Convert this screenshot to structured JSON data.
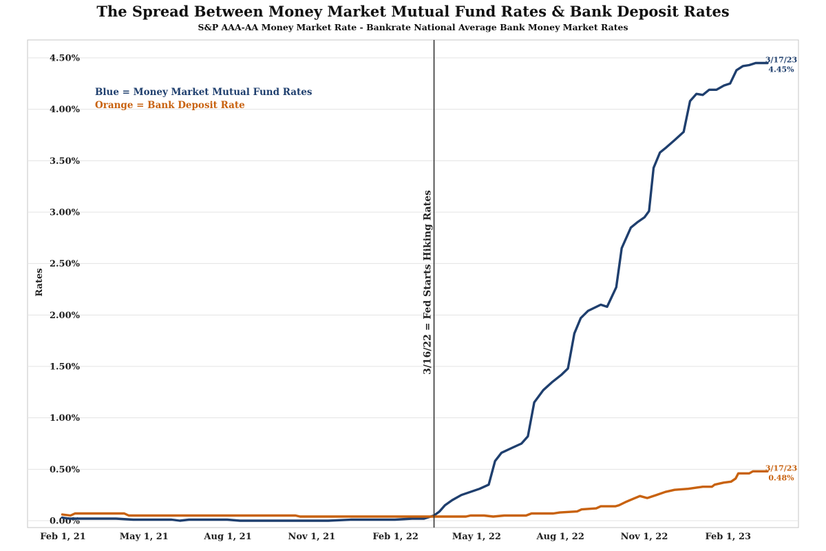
{
  "chart_data": {
    "type": "line",
    "title": "The Spread Between Money Market Mutual Fund Rates & Bank Deposit Rates",
    "subtitle": "S&P AAA-AA Money Market Rate - Bankrate National Average Bank Money Market Rates",
    "ylabel": "Rates",
    "xlabel": "",
    "x_range": [
      "2021-01-15",
      "2023-04-20"
    ],
    "ylim": [
      0,
      4.5
    ],
    "y_ticks": [
      "0.00%",
      "0.50%",
      "1.00%",
      "1.50%",
      "2.00%",
      "2.50%",
      "3.00%",
      "3.50%",
      "4.00%",
      "4.50%"
    ],
    "x_ticks": [
      {
        "date": "2021-02-01",
        "label": "Feb 1, 21"
      },
      {
        "date": "2021-05-01",
        "label": "May 1, 21"
      },
      {
        "date": "2021-08-01",
        "label": "Aug 1, 21"
      },
      {
        "date": "2021-11-01",
        "label": "Nov 1, 21"
      },
      {
        "date": "2022-02-01",
        "label": "Feb 1, 22"
      },
      {
        "date": "2022-05-01",
        "label": "May 1, 22"
      },
      {
        "date": "2022-08-01",
        "label": "Aug 1, 22"
      },
      {
        "date": "2022-11-01",
        "label": "Nov 1, 22"
      },
      {
        "date": "2023-02-01",
        "label": "Feb 1, 23"
      }
    ],
    "grid": "horizontal",
    "legend": [
      {
        "text": "Blue = Money Market Mutual Fund Rates",
        "color": "#1f3f6e"
      },
      {
        "text": "Orange = Bank Deposit Rate",
        "color": "#c8620f"
      }
    ],
    "vertical_marker": {
      "date": "2022-03-16",
      "label": "3/16/22 = Fed Starts Hiking Rates"
    },
    "series": [
      {
        "color": "#1f3f6e",
        "end_label": [
          "3/17/23",
          "4.45%"
        ],
        "points": [
          [
            "2021-02-01",
            0.03
          ],
          [
            "2021-02-08",
            0.02
          ],
          [
            "2021-03-01",
            0.02
          ],
          [
            "2021-04-01",
            0.02
          ],
          [
            "2021-04-20",
            0.01
          ],
          [
            "2021-05-15",
            0.01
          ],
          [
            "2021-06-01",
            0.01
          ],
          [
            "2021-06-10",
            0.0
          ],
          [
            "2021-06-20",
            0.01
          ],
          [
            "2021-07-15",
            0.01
          ],
          [
            "2021-08-01",
            0.01
          ],
          [
            "2021-08-15",
            0.0
          ],
          [
            "2021-09-15",
            0.0
          ],
          [
            "2021-10-15",
            0.0
          ],
          [
            "2021-11-01",
            0.0
          ],
          [
            "2021-11-20",
            0.0
          ],
          [
            "2021-12-15",
            0.01
          ],
          [
            "2022-01-15",
            0.01
          ],
          [
            "2022-02-01",
            0.01
          ],
          [
            "2022-02-20",
            0.02
          ],
          [
            "2022-03-05",
            0.02
          ],
          [
            "2022-03-16",
            0.05
          ],
          [
            "2022-03-22",
            0.09
          ],
          [
            "2022-03-28",
            0.15
          ],
          [
            "2022-04-05",
            0.2
          ],
          [
            "2022-04-15",
            0.25
          ],
          [
            "2022-04-25",
            0.28
          ],
          [
            "2022-05-05",
            0.31
          ],
          [
            "2022-05-15",
            0.35
          ],
          [
            "2022-05-22",
            0.58
          ],
          [
            "2022-05-29",
            0.66
          ],
          [
            "2022-06-10",
            0.71
          ],
          [
            "2022-06-20",
            0.75
          ],
          [
            "2022-06-27",
            0.82
          ],
          [
            "2022-07-04",
            1.15
          ],
          [
            "2022-07-14",
            1.27
          ],
          [
            "2022-07-24",
            1.35
          ],
          [
            "2022-08-03",
            1.42
          ],
          [
            "2022-08-10",
            1.48
          ],
          [
            "2022-08-17",
            1.82
          ],
          [
            "2022-08-24",
            1.97
          ],
          [
            "2022-09-01",
            2.04
          ],
          [
            "2022-09-08",
            2.07
          ],
          [
            "2022-09-15",
            2.1
          ],
          [
            "2022-09-22",
            2.08
          ],
          [
            "2022-10-02",
            2.27
          ],
          [
            "2022-10-08",
            2.65
          ],
          [
            "2022-10-18",
            2.85
          ],
          [
            "2022-10-25",
            2.9
          ],
          [
            "2022-11-02",
            2.95
          ],
          [
            "2022-11-07",
            3.01
          ],
          [
            "2022-11-12",
            3.43
          ],
          [
            "2022-11-19",
            3.58
          ],
          [
            "2022-11-26",
            3.63
          ],
          [
            "2022-12-05",
            3.7
          ],
          [
            "2022-12-15",
            3.78
          ],
          [
            "2022-12-22",
            4.08
          ],
          [
            "2022-12-29",
            4.15
          ],
          [
            "2023-01-05",
            4.14
          ],
          [
            "2023-01-12",
            4.19
          ],
          [
            "2023-01-20",
            4.19
          ],
          [
            "2023-01-28",
            4.23
          ],
          [
            "2023-02-04",
            4.25
          ],
          [
            "2023-02-11",
            4.38
          ],
          [
            "2023-02-18",
            4.42
          ],
          [
            "2023-02-25",
            4.43
          ],
          [
            "2023-03-04",
            4.45
          ],
          [
            "2023-03-17",
            4.45
          ]
        ]
      },
      {
        "color": "#c8620f",
        "end_label": [
          "3/17/23",
          "0.48%"
        ],
        "points": [
          [
            "2021-02-01",
            0.06
          ],
          [
            "2021-02-10",
            0.05
          ],
          [
            "2021-02-15",
            0.07
          ],
          [
            "2021-03-01",
            0.07
          ],
          [
            "2021-04-10",
            0.07
          ],
          [
            "2021-04-15",
            0.05
          ],
          [
            "2021-06-01",
            0.05
          ],
          [
            "2021-08-01",
            0.05
          ],
          [
            "2021-10-15",
            0.05
          ],
          [
            "2021-10-20",
            0.04
          ],
          [
            "2022-01-01",
            0.04
          ],
          [
            "2022-03-01",
            0.04
          ],
          [
            "2022-04-01",
            0.04
          ],
          [
            "2022-04-20",
            0.04
          ],
          [
            "2022-04-25",
            0.05
          ],
          [
            "2022-05-10",
            0.05
          ],
          [
            "2022-05-20",
            0.04
          ],
          [
            "2022-06-01",
            0.05
          ],
          [
            "2022-06-25",
            0.05
          ],
          [
            "2022-07-01",
            0.07
          ],
          [
            "2022-07-25",
            0.07
          ],
          [
            "2022-08-01",
            0.08
          ],
          [
            "2022-08-20",
            0.09
          ],
          [
            "2022-08-25",
            0.11
          ],
          [
            "2022-09-10",
            0.12
          ],
          [
            "2022-09-15",
            0.14
          ],
          [
            "2022-10-01",
            0.14
          ],
          [
            "2022-10-05",
            0.15
          ],
          [
            "2022-10-12",
            0.18
          ],
          [
            "2022-10-20",
            0.21
          ],
          [
            "2022-10-28",
            0.24
          ],
          [
            "2022-11-05",
            0.22
          ],
          [
            "2022-11-15",
            0.25
          ],
          [
            "2022-11-25",
            0.28
          ],
          [
            "2022-12-05",
            0.3
          ],
          [
            "2022-12-20",
            0.31
          ],
          [
            "2022-12-28",
            0.32
          ],
          [
            "2023-01-05",
            0.33
          ],
          [
            "2023-01-15",
            0.33
          ],
          [
            "2023-01-18",
            0.35
          ],
          [
            "2023-01-28",
            0.37
          ],
          [
            "2023-02-05",
            0.38
          ],
          [
            "2023-02-10",
            0.41
          ],
          [
            "2023-02-13",
            0.46
          ],
          [
            "2023-02-25",
            0.46
          ],
          [
            "2023-03-01",
            0.48
          ],
          [
            "2023-03-17",
            0.48
          ]
        ]
      }
    ]
  }
}
